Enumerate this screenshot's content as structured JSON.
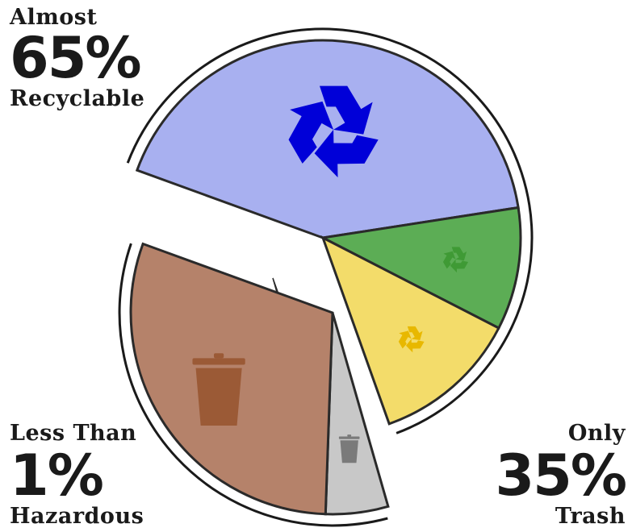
{
  "chart_data": {
    "type": "pie",
    "title": "",
    "slices": [
      {
        "group": "recyclable",
        "icon": "recycle-icon",
        "color": "#0000d8",
        "fill": "#a8b0f0",
        "value": 0.42
      },
      {
        "group": "recyclable",
        "icon": "leaf-recycle-icon",
        "color": "#3f9a35",
        "fill": "#5cad55",
        "value": 0.1
      },
      {
        "group": "recyclable",
        "icon": "recycle-icon",
        "color": "#e8b800",
        "fill": "#f3dc6a",
        "value": 0.12
      },
      {
        "group": "hazardous",
        "icon": "",
        "color": "#d02010",
        "fill": "#e8c020",
        "value": 0.01
      },
      {
        "group": "trash",
        "icon": "trash-can-icon",
        "color": "#7a7a7a",
        "fill": "#c8c8c8",
        "value": 0.05
      },
      {
        "group": "trash",
        "icon": "trash-can-icon",
        "color": "#9b5a36",
        "fill": "#b5826a",
        "value": 0.3
      }
    ],
    "annotations": {
      "recyclable": {
        "line1": "Almost",
        "value": "65%",
        "line3": "Recyclable"
      },
      "hazardous": {
        "line1": "Less Than",
        "value": "1%",
        "line3": "Hazardous"
      },
      "trash": {
        "line1": "Only",
        "value": "35%",
        "line3": "Trash"
      }
    }
  }
}
